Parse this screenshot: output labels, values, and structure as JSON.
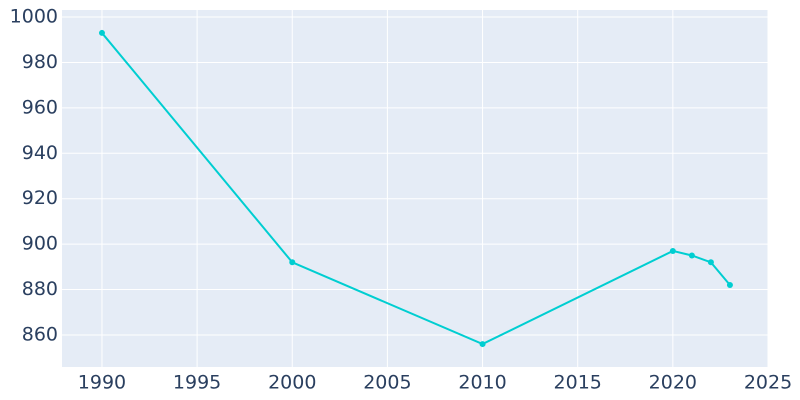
{
  "chart_data": {
    "type": "line",
    "x": [
      1990,
      2000,
      2010,
      2020,
      2021,
      2022,
      2023
    ],
    "series": [
      {
        "color": "#00ced1",
        "values": [
          993,
          892,
          856,
          897,
          895,
          892,
          882
        ]
      }
    ],
    "xlim": [
      1987.9,
      2025
    ],
    "xticks": [
      1990,
      1995,
      2000,
      2005,
      2010,
      2015,
      2020,
      2025
    ],
    "ylim": [
      845.9,
      1003.1
    ],
    "yticks": [
      860,
      880,
      900,
      920,
      940,
      960,
      980,
      1000
    ],
    "grid": true
  }
}
